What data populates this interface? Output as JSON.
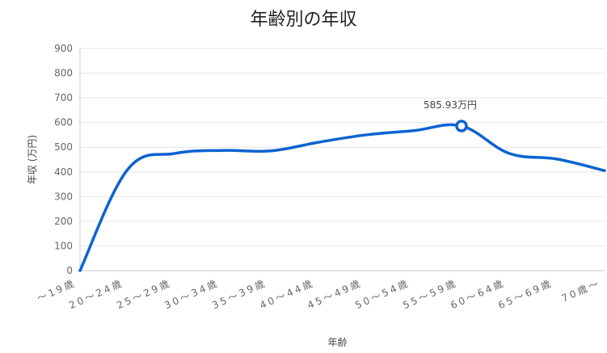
{
  "chart_data": {
    "type": "line",
    "title": "年齢別の年収",
    "xlabel": "年齢",
    "ylabel": "年収 (万円)",
    "ylim": [
      0,
      900
    ],
    "yticks": [
      0,
      100,
      200,
      300,
      400,
      500,
      600,
      700,
      800,
      900
    ],
    "categories": [
      "〜19歳",
      "20〜24歳",
      "25〜29歳",
      "30〜34歳",
      "35〜39歳",
      "40〜44歳",
      "45〜49歳",
      "50〜54歳",
      "55〜59歳",
      "60〜64歳",
      "65〜69歳",
      "70歳〜"
    ],
    "values": [
      0,
      410,
      475,
      487,
      485,
      520,
      550,
      567,
      585.93,
      475,
      452,
      405
    ],
    "annotation": {
      "index": 8,
      "text": "585.93万円"
    },
    "colors": {
      "line": "#0c63d0",
      "grid": "#e6e6e6",
      "axis": "#c8c8c8"
    },
    "grid": true,
    "legend": "none"
  }
}
